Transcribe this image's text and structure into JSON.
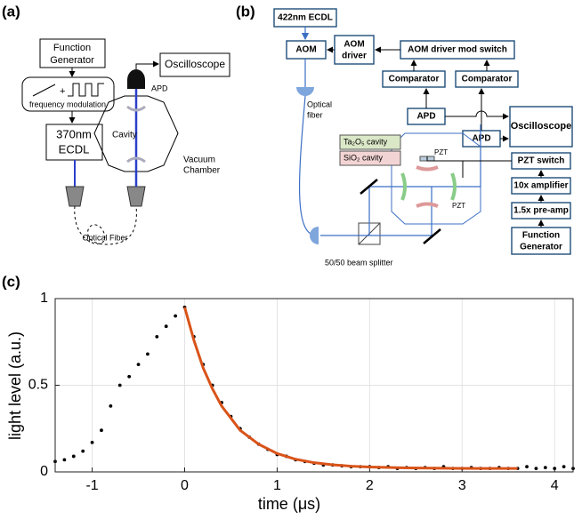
{
  "panel_labels": [
    "(a)",
    "(b)",
    "(c)"
  ],
  "diagram_a": {
    "function_generator": [
      "Function",
      "Generator"
    ],
    "plus": "+",
    "modulation": "frequency modulation",
    "laser": [
      "370nm",
      "ECDL"
    ],
    "cavity": "Cavity",
    "chamber": [
      "Vacuum",
      "Chamber"
    ],
    "apd": "APD",
    "oscilloscope": "Oscilloscope",
    "fiber": "Optical Fiber"
  },
  "diagram_b": {
    "laser": "422nm ECDL",
    "aom": "AOM",
    "aom_driver": [
      "AOM",
      "driver"
    ],
    "mod_switch": "AOM driver mod switch",
    "comparators": [
      "Comparator",
      "Comparator"
    ],
    "apds": [
      "APD",
      "APD"
    ],
    "oscilloscope": "Oscilloscope",
    "fiber": [
      "Optical",
      "fiber"
    ],
    "cavity_1": "Ta₂O₅ cavity",
    "cavity_2": "SiO₂ cavity",
    "pzt_labels": [
      "PZT",
      "PZT"
    ],
    "pzt_switch": "PZT switch",
    "amplifier": "10x amplifier",
    "preamp": "1.5x pre-amp",
    "function_generator": [
      "Function",
      "Generator"
    ],
    "splitter": "50/50 beam splitter"
  },
  "chart_data": {
    "type": "scatter",
    "xlabel": "time (μs)",
    "ylabel": "light level (a.u.)",
    "xlim": [
      -1.4,
      4.2
    ],
    "ylim": [
      0,
      1
    ],
    "xticks": [
      -1,
      0,
      1,
      2,
      3,
      4
    ],
    "yticks": [
      0,
      0.5,
      1
    ],
    "grid": true,
    "series": [
      {
        "type": "scatter",
        "color": "#000000",
        "x": [
          -1.4,
          -1.3,
          -1.2,
          -1.1,
          -1.0,
          -0.9,
          -0.8,
          -0.7,
          -0.6,
          -0.5,
          -0.4,
          -0.3,
          -0.2,
          -0.1,
          0.0,
          0.1,
          0.2,
          0.3,
          0.4,
          0.5,
          0.6,
          0.7,
          0.8,
          0.9,
          1.0,
          1.1,
          1.2,
          1.3,
          1.4,
          1.5,
          1.6,
          1.7,
          1.8,
          1.9,
          2.0,
          2.1,
          2.2,
          2.3,
          2.4,
          2.5,
          2.6,
          2.7,
          2.8,
          2.9,
          3.0,
          3.1,
          3.2,
          3.3,
          3.4,
          3.5,
          3.6,
          3.7,
          3.8,
          3.9,
          4.0,
          4.1,
          4.2
        ],
        "values": [
          0.06,
          0.07,
          0.09,
          0.12,
          0.17,
          0.24,
          0.38,
          0.5,
          0.55,
          0.62,
          0.68,
          0.78,
          0.84,
          0.9,
          0.95,
          0.78,
          0.62,
          0.5,
          0.4,
          0.32,
          0.25,
          0.2,
          0.16,
          0.13,
          0.1,
          0.09,
          0.07,
          0.06,
          0.05,
          0.04,
          0.04,
          0.035,
          0.03,
          0.03,
          0.03,
          0.025,
          0.03,
          0.02,
          0.025,
          0.02,
          0.025,
          0.02,
          0.03,
          0.02,
          0.02,
          0.025,
          0.02,
          0.02,
          0.025,
          0.02,
          0.02,
          0.03,
          0.02,
          0.025,
          0.02,
          0.03,
          0.02
        ]
      },
      {
        "type": "line",
        "color": "#d95319",
        "x": [
          0,
          0.1,
          0.2,
          0.3,
          0.4,
          0.6,
          0.8,
          1.0,
          1.2,
          1.4,
          1.6,
          1.8,
          2.0,
          2.4,
          2.8,
          3.2,
          3.6
        ],
        "values": [
          0.95,
          0.76,
          0.6,
          0.48,
          0.38,
          0.24,
          0.16,
          0.106,
          0.073,
          0.053,
          0.041,
          0.033,
          0.028,
          0.023,
          0.021,
          0.02,
          0.02
        ]
      }
    ]
  }
}
